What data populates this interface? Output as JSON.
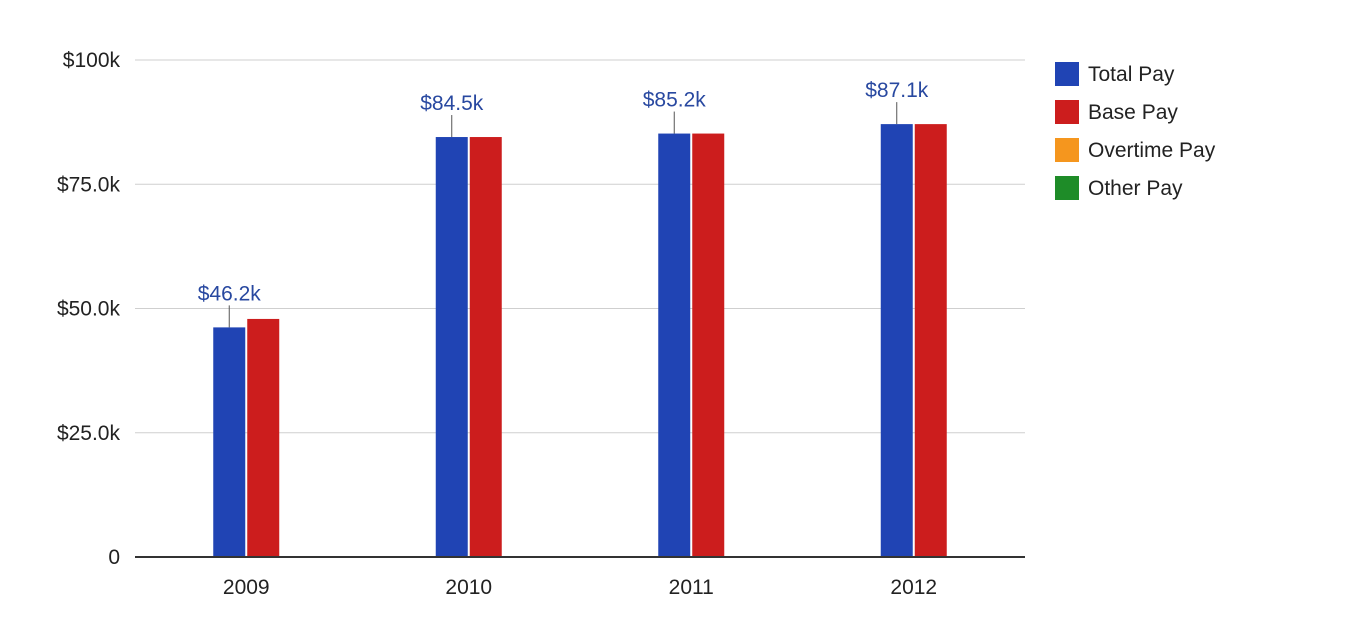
{
  "chart_data": {
    "type": "bar",
    "categories": [
      "2009",
      "2010",
      "2011",
      "2012"
    ],
    "series": [
      {
        "name": "Total Pay",
        "color": "#2044b4",
        "values": [
          46.2,
          84.5,
          85.2,
          87.1
        ]
      },
      {
        "name": "Base Pay",
        "color": "#cc1d1d",
        "values": [
          47.9,
          84.5,
          85.2,
          87.1
        ]
      },
      {
        "name": "Overtime Pay",
        "color": "#f5961e",
        "values": [
          0,
          0,
          0,
          0
        ]
      },
      {
        "name": "Other Pay",
        "color": "#1e8c28",
        "values": [
          0,
          0,
          0,
          0
        ]
      }
    ],
    "data_labels": [
      "$46.2k",
      "$84.5k",
      "$85.2k",
      "$87.1k"
    ],
    "y_ticks": [
      {
        "value": 0,
        "label": "0"
      },
      {
        "value": 25,
        "label": "$25.0k"
      },
      {
        "value": 50,
        "label": "$50.0k"
      },
      {
        "value": 75,
        "label": "$75.0k"
      },
      {
        "value": 100,
        "label": "$100k"
      }
    ],
    "ylim": [
      0,
      100
    ],
    "y_unit": "thousands of dollars",
    "grid": true,
    "legend_position": "right",
    "title": "",
    "xlabel": "",
    "ylabel": ""
  }
}
